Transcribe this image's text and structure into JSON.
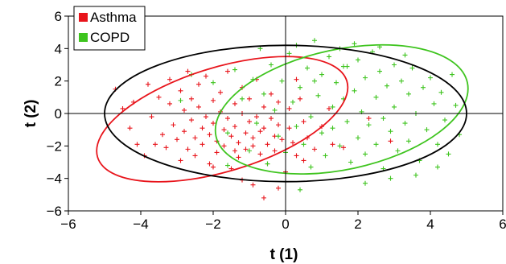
{
  "chart_data": {
    "type": "scatter",
    "xlabel": "t (1)",
    "ylabel": "t (2)",
    "xlim": [
      -6,
      6
    ],
    "ylim": [
      -6,
      6
    ],
    "xticks": [
      -6,
      -4,
      -2,
      0,
      2,
      4,
      6
    ],
    "yticks": [
      -6,
      -4,
      -2,
      0,
      2,
      4,
      6
    ],
    "x_tick_labels": [
      "−6",
      "−4",
      "−2",
      "0",
      "2",
      "4",
      "6"
    ],
    "y_tick_labels": [
      "−6",
      "−4",
      "−2",
      "0",
      "2",
      "4",
      "6"
    ],
    "marker": "plus",
    "grid": false,
    "legend_position": "top-left",
    "series": [
      {
        "name": "Asthma",
        "color": "#e8141b",
        "ellipse": {
          "cx": -1.75,
          "cy": -0.35,
          "rx": 3.6,
          "ry": 3.2,
          "rotation_deg": -17
        },
        "points": [
          [
            -4.7,
            1.5
          ],
          [
            -4.5,
            0.3
          ],
          [
            -4.3,
            -0.9
          ],
          [
            -4.1,
            -1.9
          ],
          [
            -3.9,
            -2.6
          ],
          [
            -3.7,
            -0.2
          ],
          [
            -3.5,
            1.0
          ],
          [
            -3.4,
            -1.3
          ],
          [
            -3.3,
            -2.1
          ],
          [
            -3.2,
            0.6
          ],
          [
            -3.1,
            -0.7
          ],
          [
            -3.0,
            -1.6
          ],
          [
            -2.9,
            1.4
          ],
          [
            -2.9,
            -2.9
          ],
          [
            -2.8,
            0.2
          ],
          [
            -2.8,
            -1.1
          ],
          [
            -2.7,
            -2.2
          ],
          [
            -2.6,
            0.9
          ],
          [
            -2.6,
            -0.4
          ],
          [
            -2.5,
            -1.5
          ],
          [
            -2.5,
            -2.6
          ],
          [
            -2.4,
            1.8
          ],
          [
            -2.4,
            0.4
          ],
          [
            -2.3,
            -0.9
          ],
          [
            -2.3,
            -1.9
          ],
          [
            -2.2,
            2.3
          ],
          [
            -2.2,
            -0.2
          ],
          [
            -2.1,
            -1.3
          ],
          [
            -2.1,
            -3.1
          ],
          [
            -2.0,
            0.8
          ],
          [
            -2.0,
            -0.6
          ],
          [
            -1.9,
            -1.7
          ],
          [
            -1.9,
            -2.4
          ],
          [
            -1.8,
            1.3
          ],
          [
            -1.8,
            0.1
          ],
          [
            -1.7,
            -1.0
          ],
          [
            -1.7,
            -2.0
          ],
          [
            -1.6,
            2.6
          ],
          [
            -1.6,
            -0.3
          ],
          [
            -1.5,
            -1.4
          ],
          [
            -1.5,
            -3.4
          ],
          [
            -1.4,
            0.6
          ],
          [
            -1.4,
            -0.8
          ],
          [
            -1.3,
            -1.8
          ],
          [
            -1.3,
            -2.7
          ],
          [
            -1.2,
            1.6
          ],
          [
            -1.2,
            0.0
          ],
          [
            -1.1,
            -1.2
          ],
          [
            -1.1,
            -2.2
          ],
          [
            -1.0,
            0.9
          ],
          [
            -1.0,
            -0.5
          ],
          [
            -0.9,
            -1.5
          ],
          [
            -0.9,
            -4.4
          ],
          [
            -0.8,
            2.1
          ],
          [
            -0.8,
            -0.2
          ],
          [
            -0.7,
            -1.1
          ],
          [
            -0.7,
            -2.5
          ],
          [
            -0.6,
            0.4
          ],
          [
            -0.6,
            -0.9
          ],
          [
            -0.5,
            -1.9
          ],
          [
            -0.5,
            -3.1
          ],
          [
            -0.4,
            1.2
          ],
          [
            -0.4,
            -0.3
          ],
          [
            -0.3,
            -1.4
          ],
          [
            -0.3,
            -2.3
          ],
          [
            -0.2,
            0.7
          ],
          [
            -0.2,
            -0.7
          ],
          [
            -0.1,
            -1.6
          ],
          [
            0.0,
            -3.6
          ],
          [
            0.1,
            0.3
          ],
          [
            0.1,
            -0.9
          ],
          [
            0.2,
            -1.8
          ],
          [
            0.3,
            -2.6
          ],
          [
            0.4,
            0.9
          ],
          [
            0.5,
            -0.5
          ],
          [
            0.6,
            -1.5
          ],
          [
            0.8,
            -2.2
          ],
          [
            1.0,
            -0.8
          ],
          [
            1.3,
            -1.9
          ],
          [
            2.3,
            -0.3
          ],
          [
            -0.6,
            -5.2
          ],
          [
            -1.2,
            -4.1
          ],
          [
            -3.2,
            2.1
          ],
          [
            -2.7,
            2.6
          ],
          [
            -3.6,
            -1.9
          ],
          [
            -0.9,
            -2.0
          ],
          [
            -1.4,
            -2.3
          ],
          [
            0.3,
            2.1
          ],
          [
            1.2,
            0.3
          ],
          [
            2.9,
            -1.7
          ],
          [
            0.5,
            -2.9
          ],
          [
            -4.2,
            0.7
          ],
          [
            -3.8,
            1.8
          ],
          [
            -0.2,
            -4.6
          ],
          [
            1.6,
            -2.1
          ],
          [
            -2.0,
            -3.3
          ]
        ]
      },
      {
        "name": "COPD",
        "color": "#3ec41e",
        "ellipse": {
          "cx": 1.55,
          "cy": 0.25,
          "rx": 3.55,
          "ry": 3.7,
          "rotation_deg": -12
        },
        "points": [
          [
            -2.6,
            2.4
          ],
          [
            -2.0,
            1.9
          ],
          [
            -1.6,
            -1.2
          ],
          [
            -1.4,
            2.7
          ],
          [
            -1.2,
            0.9
          ],
          [
            -1.0,
            -2.3
          ],
          [
            -0.9,
            2.1
          ],
          [
            -0.8,
            -0.6
          ],
          [
            -0.6,
            1.2
          ],
          [
            -0.5,
            -3.1
          ],
          [
            -0.4,
            3.0
          ],
          [
            -0.3,
            0.2
          ],
          [
            -0.2,
            -1.4
          ],
          [
            -0.1,
            2.0
          ],
          [
            0.0,
            -2.4
          ],
          [
            0.1,
            3.7
          ],
          [
            0.2,
            0.7
          ],
          [
            0.3,
            -0.8
          ],
          [
            0.3,
            4.2
          ],
          [
            0.4,
            1.6
          ],
          [
            0.5,
            -1.9
          ],
          [
            0.6,
            2.8
          ],
          [
            0.7,
            -0.2
          ],
          [
            0.7,
            -3.3
          ],
          [
            0.8,
            4.5
          ],
          [
            0.9,
            1.1
          ],
          [
            1.0,
            -1.2
          ],
          [
            1.0,
            2.4
          ],
          [
            1.1,
            -2.6
          ],
          [
            1.2,
            3.5
          ],
          [
            1.3,
            0.4
          ],
          [
            1.3,
            -0.9
          ],
          [
            1.4,
            1.9
          ],
          [
            1.5,
            -2.0
          ],
          [
            1.5,
            4.0
          ],
          [
            1.6,
            0.9
          ],
          [
            1.7,
            -0.5
          ],
          [
            1.7,
            2.9
          ],
          [
            1.8,
            -3.0
          ],
          [
            1.9,
            1.4
          ],
          [
            2.0,
            -1.5
          ],
          [
            2.0,
            3.3
          ],
          [
            2.1,
            0.1
          ],
          [
            2.2,
            -2.5
          ],
          [
            2.2,
            2.2
          ],
          [
            2.3,
            -0.7
          ],
          [
            2.4,
            3.8
          ],
          [
            2.5,
            1.0
          ],
          [
            2.5,
            -1.9
          ],
          [
            2.6,
            2.6
          ],
          [
            2.7,
            -0.3
          ],
          [
            2.7,
            -3.4
          ],
          [
            2.8,
            1.7
          ],
          [
            2.9,
            -1.1
          ],
          [
            3.0,
            3.0
          ],
          [
            3.0,
            0.4
          ],
          [
            3.1,
            -2.3
          ],
          [
            3.2,
            2.0
          ],
          [
            3.3,
            -0.6
          ],
          [
            3.4,
            1.2
          ],
          [
            3.4,
            -1.7
          ],
          [
            3.5,
            2.8
          ],
          [
            3.6,
            0.0
          ],
          [
            3.7,
            -2.9
          ],
          [
            3.8,
            1.6
          ],
          [
            3.9,
            -1.0
          ],
          [
            4.0,
            2.2
          ],
          [
            4.1,
            0.6
          ],
          [
            4.2,
            -1.9
          ],
          [
            4.3,
            1.3
          ],
          [
            4.4,
            -0.4
          ],
          [
            4.5,
            -2.5
          ],
          [
            4.7,
            0.5
          ],
          [
            4.8,
            -1.3
          ],
          [
            4.2,
            -3.3
          ],
          [
            3.6,
            -3.8
          ],
          [
            2.9,
            -4.0
          ],
          [
            0.4,
            -4.7
          ],
          [
            -1.6,
            -3.2
          ],
          [
            -2.9,
            0.8
          ],
          [
            1.9,
            4.3
          ],
          [
            2.6,
            4.1
          ],
          [
            0.8,
            2.0
          ],
          [
            1.6,
            2.9
          ],
          [
            3.3,
            3.6
          ],
          [
            4.6,
            2.4
          ],
          [
            -0.7,
            4.0
          ],
          [
            2.2,
            -4.3
          ]
        ]
      }
    ],
    "overall_ellipse": {
      "color": "#000000",
      "cx": 0.0,
      "cy": 0.0,
      "rx": 5.0,
      "ry": 4.2,
      "rotation_deg": 0
    }
  }
}
